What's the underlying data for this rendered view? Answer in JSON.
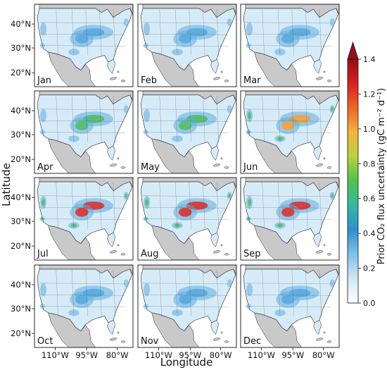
{
  "figure": {
    "ylabel": "Latitude",
    "xlabel": "Longitude",
    "lat_ticks": [
      "40°N",
      "30°N",
      "20°N"
    ],
    "lon_ticks": [
      "110°W",
      "95°W",
      "80°W"
    ],
    "months": [
      "Jan",
      "Feb",
      "Mar",
      "Apr",
      "May",
      "Jun",
      "Jul",
      "Aug",
      "Sep",
      "Oct",
      "Nov",
      "Dec"
    ]
  },
  "colorbar": {
    "label": "Prior CO₂  flux uncertainty (gC m⁻² d⁻¹)",
    "ticks": [
      "0.0",
      "0.2",
      "0.4",
      "0.6",
      "0.8",
      "1.0",
      "1.2",
      "1.4"
    ],
    "min": 0.0,
    "max": 1.4,
    "extend": "max",
    "colors": [
      "#ffffff",
      "#cfe8f7",
      "#7fc0ea",
      "#2f8fd0",
      "#34b9a0",
      "#4fc24c",
      "#b6d23c",
      "#f3b43a",
      "#ee6527",
      "#d91f1f",
      "#9a0d16"
    ]
  },
  "colors": {
    "land": "#c9c9c9",
    "usa_base": "#ffffff",
    "low": "#d6ebf8",
    "mid": "#4aa3dc",
    "high_green": "#45b85a",
    "high_orange": "#f09a2f",
    "high_red": "#d5241f",
    "border": "#222222"
  },
  "hotspot_levels": {
    "Jan": 0.35,
    "Feb": 0.3,
    "Mar": 0.4,
    "Apr": 0.75,
    "May": 0.55,
    "Jun": 0.95,
    "Jul": 1.05,
    "Aug": 1.1,
    "Sep": 1.0,
    "Oct": 0.45,
    "Nov": 0.35,
    "Dec": 0.4
  }
}
